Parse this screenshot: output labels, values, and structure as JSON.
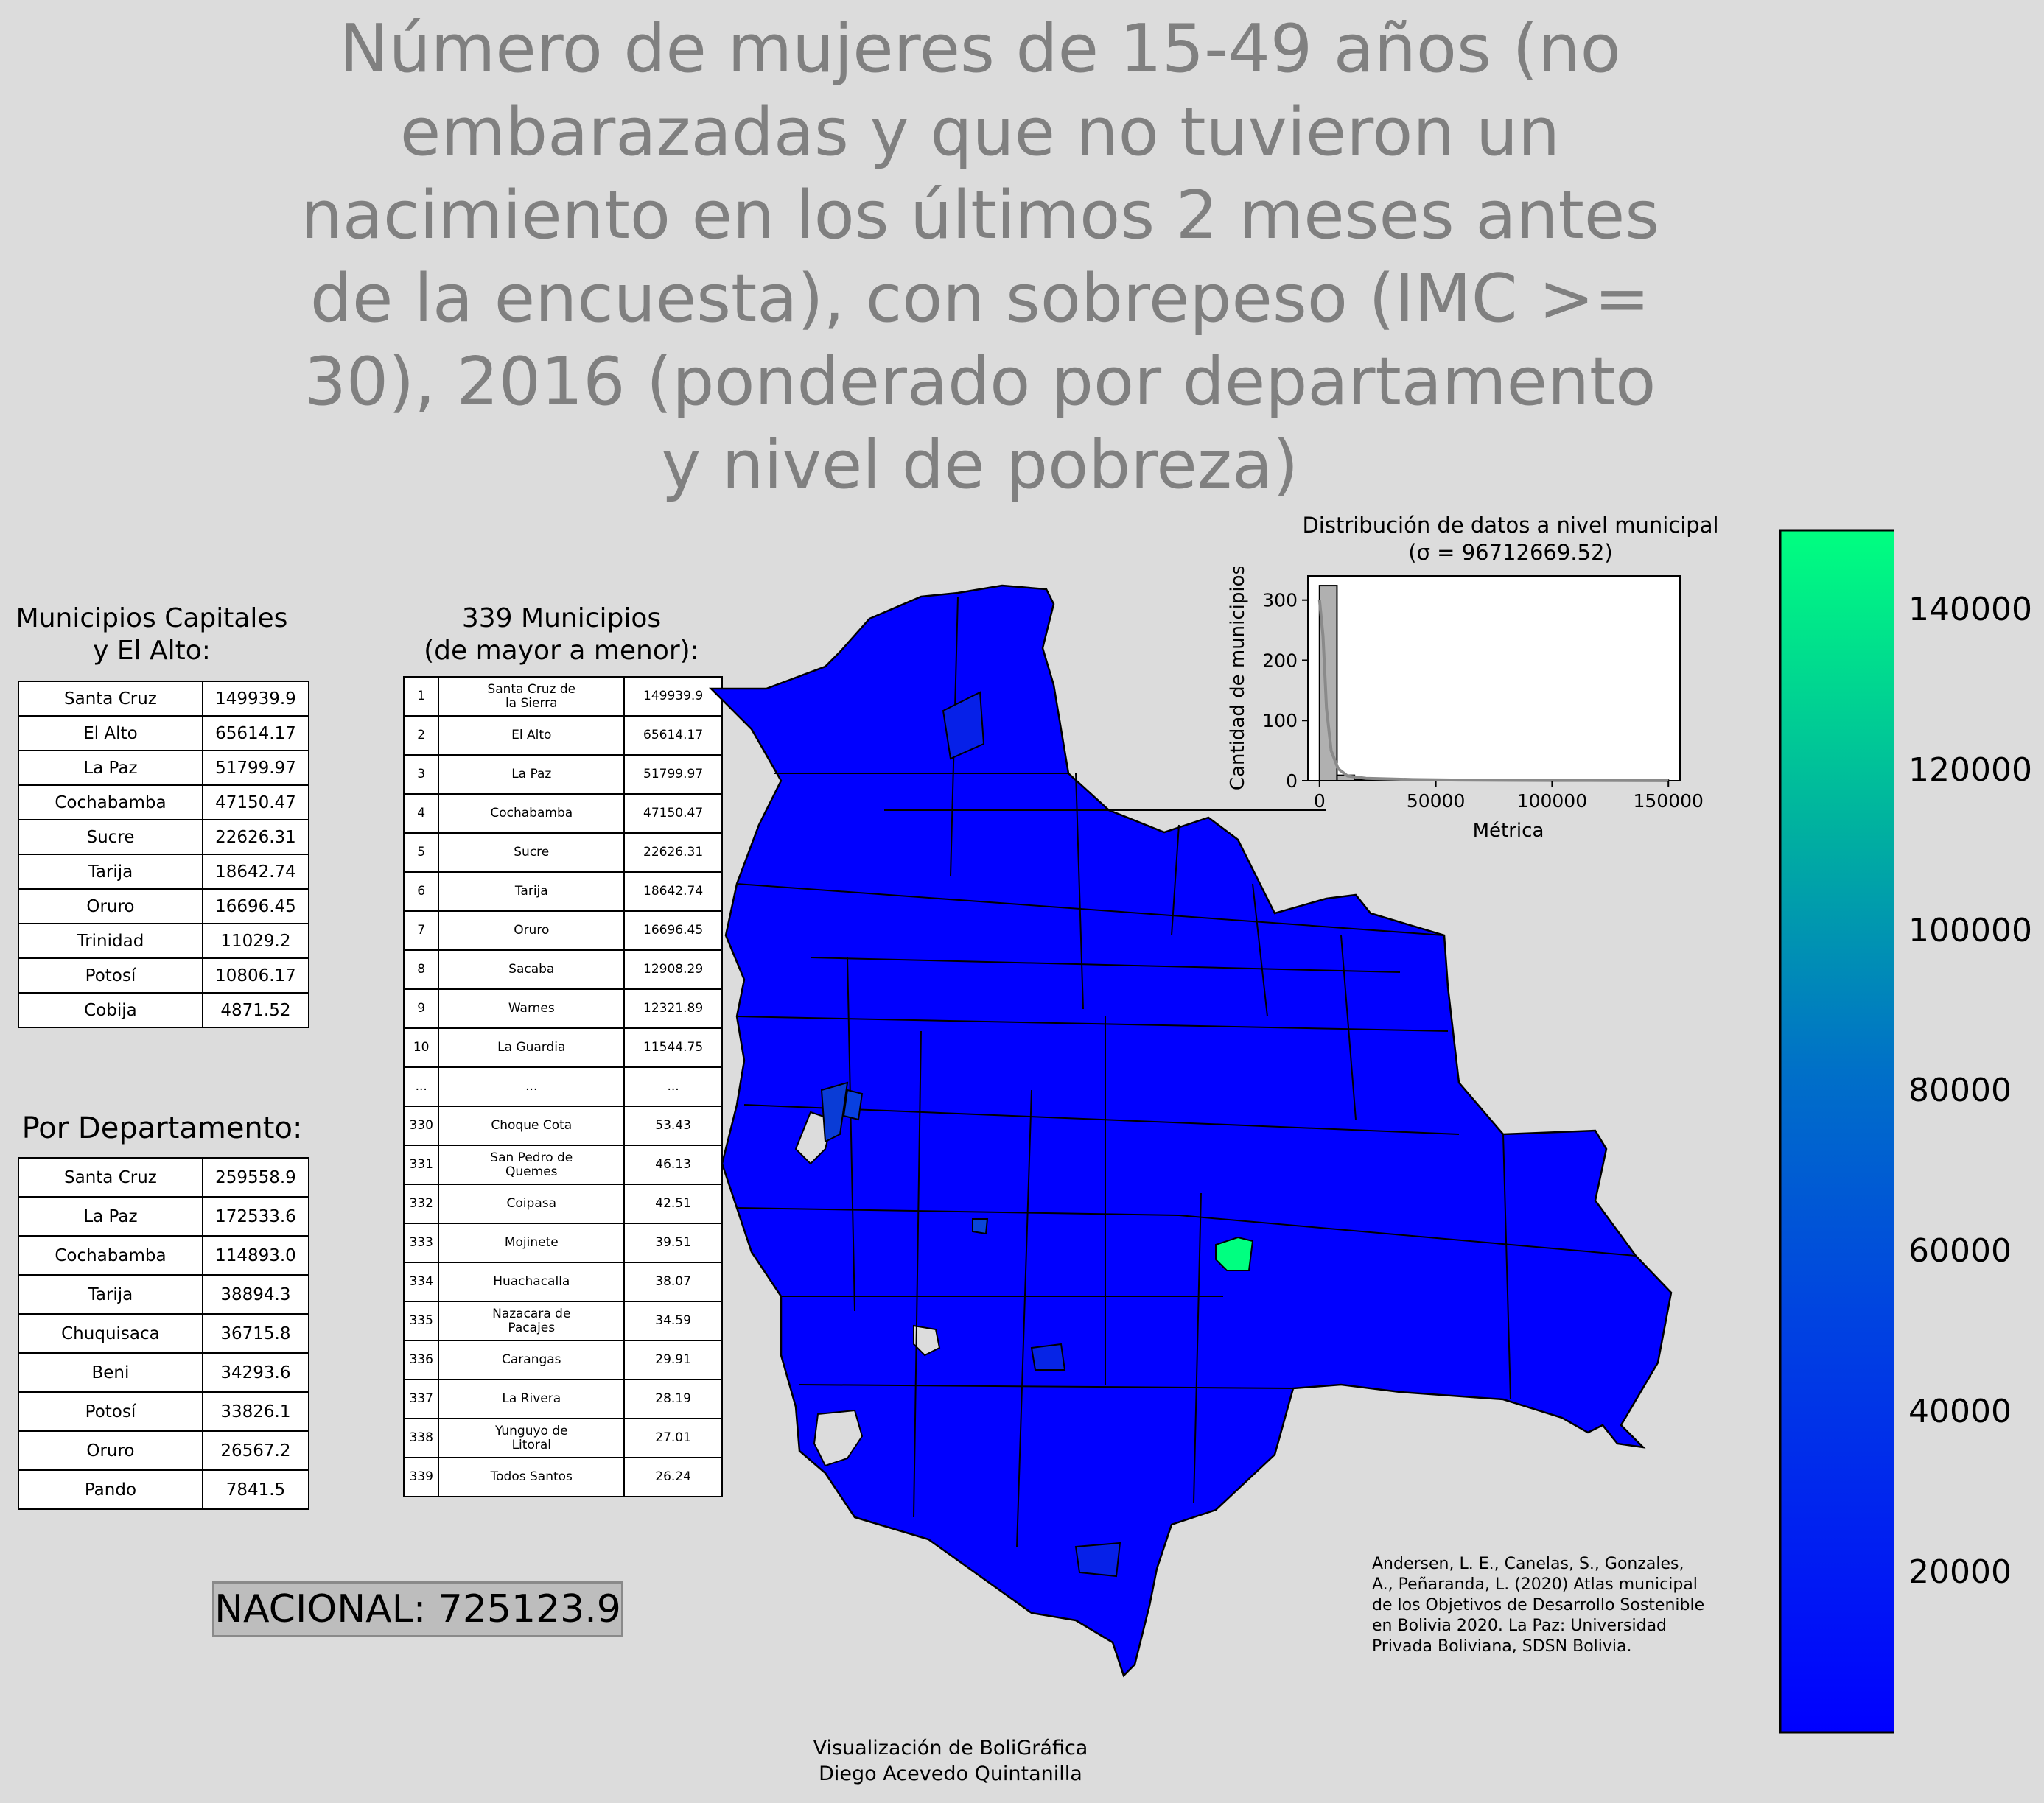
{
  "title": "Número de mujeres de 15-49 años (no embarazadas y que no tuvieron un nacimiento en los últimos 2 meses antes de la encuesta), con sobrepeso (IMC >= 30), 2016 (ponderado por departamento y nivel de pobreza)",
  "capitals": {
    "heading": "Municipios Capitales\ny El Alto:",
    "rows": [
      [
        "Santa Cruz",
        "149939.9"
      ],
      [
        "El Alto",
        "65614.17"
      ],
      [
        "La Paz",
        "51799.97"
      ],
      [
        "Cochabamba",
        "47150.47"
      ],
      [
        "Sucre",
        "22626.31"
      ],
      [
        "Tarija",
        "18642.74"
      ],
      [
        "Oruro",
        "16696.45"
      ],
      [
        "Trinidad",
        "11029.2"
      ],
      [
        "Potosí",
        "10806.17"
      ],
      [
        "Cobija",
        "4871.52"
      ]
    ]
  },
  "departments": {
    "heading": "Por Departamento:",
    "rows": [
      [
        "Santa Cruz",
        "259558.9"
      ],
      [
        "La Paz",
        "172533.6"
      ],
      [
        "Cochabamba",
        "114893.0"
      ],
      [
        "Tarija",
        "38894.3"
      ],
      [
        "Chuquisaca",
        "36715.8"
      ],
      [
        "Beni",
        "34293.6"
      ],
      [
        "Potosí",
        "33826.1"
      ],
      [
        "Oruro",
        "26567.2"
      ],
      [
        "Pando",
        "7841.5"
      ]
    ]
  },
  "municipalities": {
    "heading": "339 Municipios\n(de mayor a menor):",
    "rows": [
      [
        "1",
        "Santa Cruz de\nla Sierra",
        "149939.9"
      ],
      [
        "2",
        "El Alto",
        "65614.17"
      ],
      [
        "3",
        "La Paz",
        "51799.97"
      ],
      [
        "4",
        "Cochabamba",
        "47150.47"
      ],
      [
        "5",
        "Sucre",
        "22626.31"
      ],
      [
        "6",
        "Tarija",
        "18642.74"
      ],
      [
        "7",
        "Oruro",
        "16696.45"
      ],
      [
        "8",
        "Sacaba",
        "12908.29"
      ],
      [
        "9",
        "Warnes",
        "12321.89"
      ],
      [
        "10",
        "La Guardia",
        "11544.75"
      ],
      [
        "...",
        "...",
        "..."
      ],
      [
        "330",
        "Choque Cota",
        "53.43"
      ],
      [
        "331",
        "San Pedro de\nQuemes",
        "46.13"
      ],
      [
        "332",
        "Coipasa",
        "42.51"
      ],
      [
        "333",
        "Mojinete",
        "39.51"
      ],
      [
        "334",
        "Huachacalla",
        "38.07"
      ],
      [
        "335",
        "Nazacara de\nPacajes",
        "34.59"
      ],
      [
        "336",
        "Carangas",
        "29.91"
      ],
      [
        "337",
        "La Rivera",
        "28.19"
      ],
      [
        "338",
        "Yunguyo de\nLitoral",
        "27.01"
      ],
      [
        "339",
        "Todos Santos",
        "26.24"
      ]
    ]
  },
  "nacional": "NACIONAL: 725123.9",
  "citation": "Andersen, L. E., Canelas, S., Gonzales,\nA., Peñaranda, L. (2020) Atlas municipal\nde los Objetivos de Desarrollo Sostenible\nen Bolivia 2020. La Paz: Universidad\nPrivada Boliviana, SDSN Bolivia.",
  "credit": "Visualización de BoliGráfica\nDiego Acevedo Quintanilla",
  "colors": {
    "background": "#dcdcdc",
    "title": "#808080",
    "map_low": "#0000ff",
    "map_high": "#00ff80",
    "hist_bar": "#b0b0b0"
  },
  "colorbar": {
    "ticks": [
      "20000",
      "40000",
      "60000",
      "80000",
      "100000",
      "120000",
      "140000"
    ],
    "min": 26.24,
    "max": 149939.9
  },
  "chart_data": {
    "type": "bar",
    "title": "Distribución de datos a nivel municipal\n(σ = 96712669.52)",
    "xlabel": "Métrica",
    "ylabel": "Cantidad de municipios",
    "x_ticks": [
      "0",
      "50000",
      "100000",
      "150000"
    ],
    "y_ticks": [
      "0",
      "100",
      "200",
      "300"
    ],
    "xlim": [
      -5000,
      155000
    ],
    "ylim": [
      0,
      340
    ],
    "bins": [
      {
        "x0": 0,
        "x1": 7500,
        "count": 324
      },
      {
        "x0": 7500,
        "x1": 15000,
        "count": 9
      },
      {
        "x0": 15000,
        "x1": 22500,
        "count": 2
      },
      {
        "x0": 45000,
        "x1": 52500,
        "count": 2
      },
      {
        "x0": 60000,
        "x1": 67500,
        "count": 1
      },
      {
        "x0": 142500,
        "x1": 150000,
        "count": 1
      }
    ],
    "kde": [
      [
        0,
        300
      ],
      [
        1500,
        240
      ],
      [
        3000,
        120
      ],
      [
        5000,
        50
      ],
      [
        8000,
        20
      ],
      [
        12000,
        8
      ],
      [
        20000,
        4
      ],
      [
        40000,
        2
      ],
      [
        60000,
        1
      ],
      [
        100000,
        0.5
      ],
      [
        150000,
        0.2
      ]
    ]
  }
}
